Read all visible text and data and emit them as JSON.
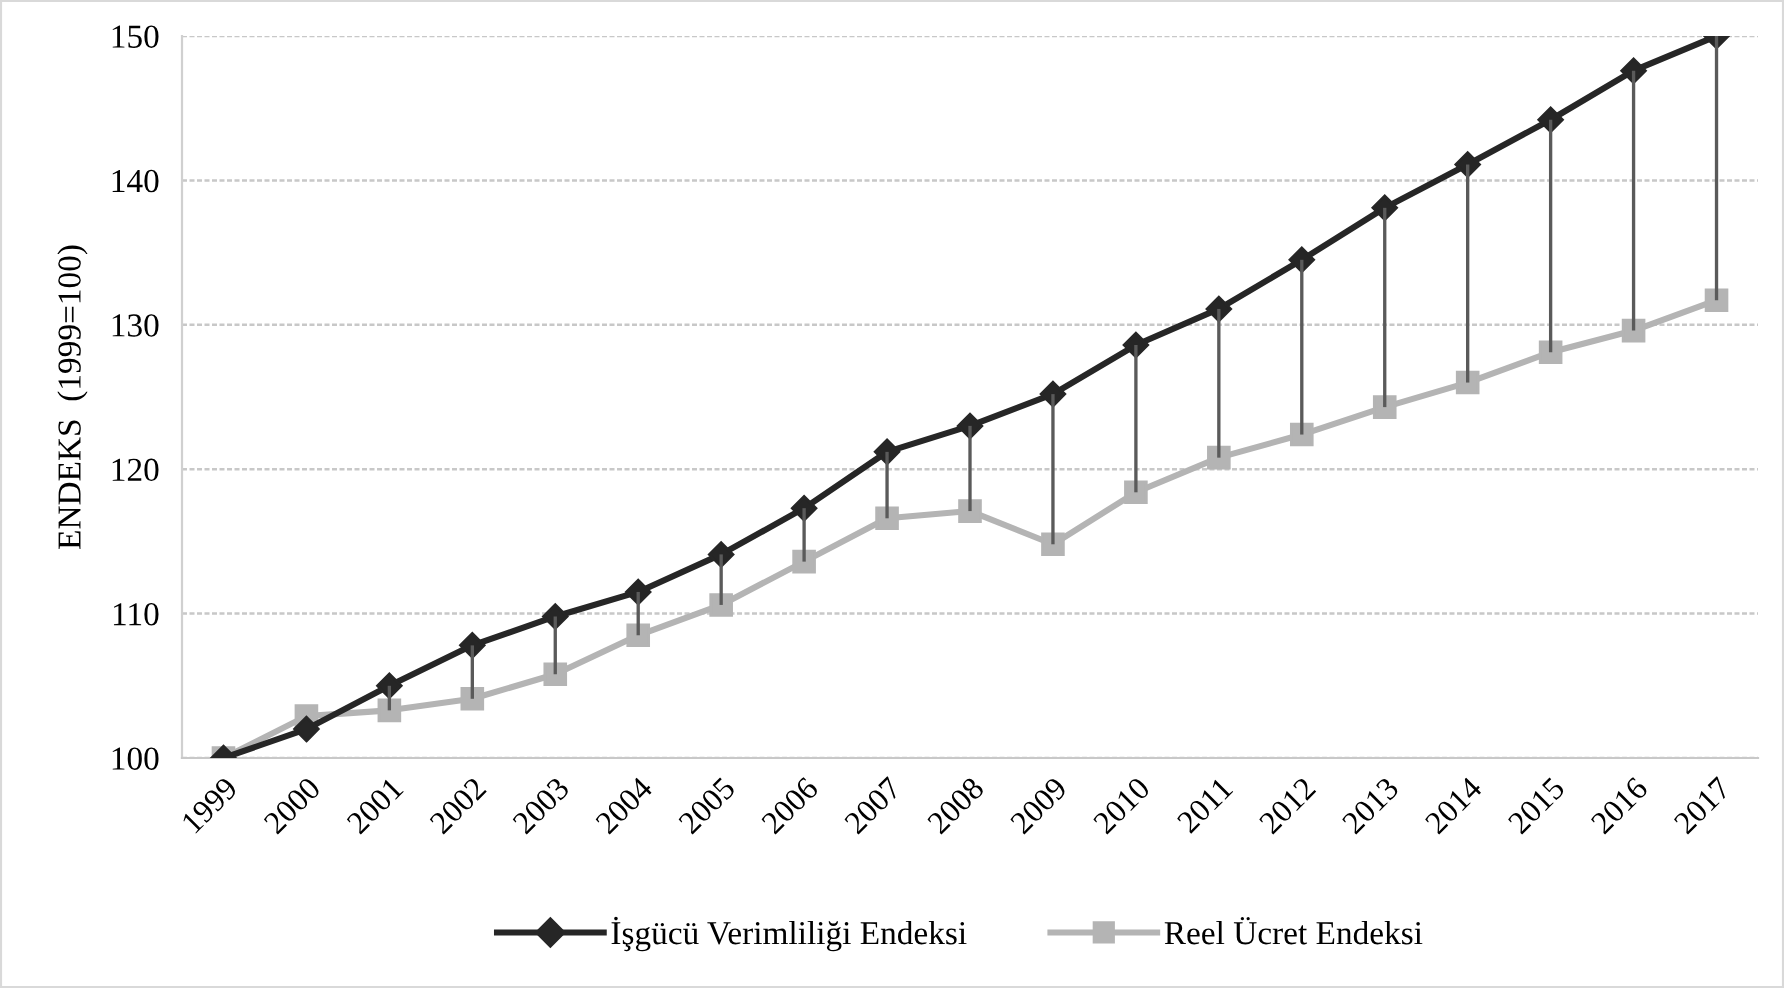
{
  "chart_data": {
    "type": "line",
    "ylabel": "ENDEKS  (1999=100)",
    "categories": [
      "1999",
      "2000",
      "2001",
      "2002",
      "2003",
      "2004",
      "2005",
      "2006",
      "2007",
      "2008",
      "2009",
      "2010",
      "2011",
      "2012",
      "2013",
      "2014",
      "2015",
      "2016",
      "2017"
    ],
    "series": [
      {
        "name": "İşgücü Verimliliği Endeksi",
        "color": "#262626",
        "marker": "diamond",
        "values": [
          100,
          102.0,
          105.0,
          107.8,
          109.8,
          111.5,
          114.1,
          117.3,
          121.2,
          123.0,
          125.2,
          128.6,
          131.1,
          134.5,
          138.1,
          141.1,
          144.2,
          147.6,
          150
        ]
      },
      {
        "name": "Reel Ücret Endeksi",
        "color": "#b4b4b4",
        "marker": "square",
        "values": [
          100,
          102.9,
          103.3,
          104.1,
          105.8,
          108.5,
          110.6,
          113.6,
          116.6,
          117.1,
          114.8,
          118.4,
          120.8,
          122.4,
          124.3,
          126.0,
          128.1,
          129.6,
          131.7
        ],
        "errors": [
          null,
          null,
          [
            103.3,
            105.0
          ],
          [
            104.1,
            107.8
          ],
          [
            105.8,
            109.8
          ],
          [
            108.5,
            111.5
          ],
          [
            110.6,
            114.1
          ],
          [
            113.6,
            117.3
          ],
          [
            116.6,
            121.2
          ],
          [
            117.1,
            123.0
          ],
          [
            114.8,
            125.2
          ],
          [
            118.4,
            128.6
          ],
          [
            120.8,
            131.1
          ],
          [
            122.4,
            134.5
          ],
          [
            124.3,
            138.1
          ],
          [
            126.0,
            141.1
          ],
          [
            128.1,
            144.2
          ],
          [
            129.6,
            147.6
          ],
          [
            131.7,
            150
          ]
        ]
      }
    ],
    "ylim": [
      100,
      150
    ],
    "yticks": [
      100,
      110,
      120,
      130,
      140,
      150
    ],
    "grid": "y",
    "legend": "bottom",
    "line_style": "solid"
  }
}
